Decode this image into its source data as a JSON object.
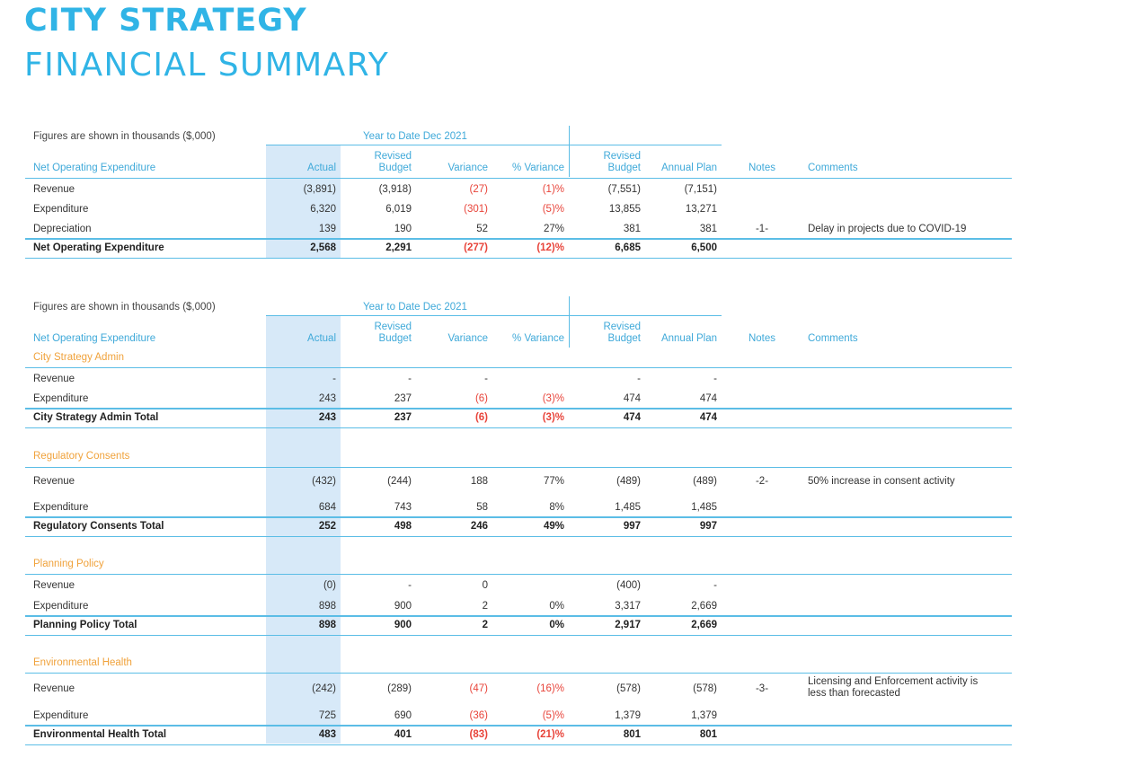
{
  "title": {
    "line1": "CITY STRATEGY",
    "line2": "FINANCIAL SUMMARY"
  },
  "headers": {
    "figures_note": "Figures are shown in thousands ($,000)",
    "ytd": "Year to Date Dec 2021",
    "label": "Net Operating Expenditure",
    "actual": "Actual",
    "revised1": "Revised",
    "budget": "Budget",
    "variance": "Variance",
    "pct_variance": "% Variance",
    "annual_plan": "Annual Plan",
    "notes": "Notes",
    "comments": "Comments"
  },
  "summary": {
    "rows": [
      {
        "label": "Revenue",
        "actual": "(3,891)",
        "revised": "(3,918)",
        "variance": "(27)",
        "pct": "(1)%",
        "rev_budget": "(7,551)",
        "annual": "(7,151)",
        "note": "",
        "comment": ""
      },
      {
        "label": "Expenditure",
        "actual": "6,320",
        "revised": "6,019",
        "variance": "(301)",
        "pct": "(5)%",
        "rev_budget": "13,855",
        "annual": "13,271",
        "note": "",
        "comment": ""
      },
      {
        "label": "Depreciation",
        "actual": "139",
        "revised": "190",
        "variance": "52",
        "pct": "27%",
        "rev_budget": "381",
        "annual": "381",
        "note": "-1-",
        "comment": "Delay in projects due to COVID-19"
      }
    ],
    "total": {
      "label": "Net Operating Expenditure",
      "actual": "2,568",
      "revised": "2,291",
      "variance": "(277)",
      "pct": "(12)%",
      "rev_budget": "6,685",
      "annual": "6,500"
    }
  },
  "sections": [
    {
      "name": "City Strategy Admin",
      "rows": [
        {
          "label": "Revenue",
          "actual": "-",
          "revised": "-",
          "variance": "-",
          "pct": "",
          "rev_budget": "-",
          "annual": "-",
          "note": "",
          "comment": ""
        },
        {
          "label": "Expenditure",
          "actual": "243",
          "revised": "237",
          "variance": "(6)",
          "pct": "(3)%",
          "rev_budget": "474",
          "annual": "474",
          "note": "",
          "comment": ""
        }
      ],
      "total": {
        "label": "City Strategy Admin Total",
        "actual": "243",
        "revised": "237",
        "variance": "(6)",
        "pct": "(3)%",
        "rev_budget": "474",
        "annual": "474"
      }
    },
    {
      "name": "Regulatory Consents",
      "rows": [
        {
          "label": "Revenue",
          "actual": "(432)",
          "revised": "(244)",
          "variance": "188",
          "pct": "77%",
          "rev_budget": "(489)",
          "annual": "(489)",
          "note": "-2-",
          "comment": "50% increase in consent activity"
        },
        {
          "label": "Expenditure",
          "actual": "684",
          "revised": "743",
          "variance": "58",
          "pct": "8%",
          "rev_budget": "1,485",
          "annual": "1,485",
          "note": "",
          "comment": ""
        }
      ],
      "total": {
        "label": "Regulatory Consents Total",
        "actual": "252",
        "revised": "498",
        "variance": "246",
        "pct": "49%",
        "rev_budget": "997",
        "annual": "997"
      }
    },
    {
      "name": "Planning Policy",
      "rows": [
        {
          "label": "Revenue",
          "actual": "(0)",
          "revised": "-",
          "variance": "0",
          "pct": "",
          "rev_budget": "(400)",
          "annual": "-",
          "note": "",
          "comment": ""
        },
        {
          "label": "Expenditure",
          "actual": "898",
          "revised": "900",
          "variance": "2",
          "pct": "0%",
          "rev_budget": "3,317",
          "annual": "2,669",
          "note": "",
          "comment": ""
        }
      ],
      "total": {
        "label": "Planning Policy Total",
        "actual": "898",
        "revised": "900",
        "variance": "2",
        "pct": "0%",
        "rev_budget": "2,917",
        "annual": "2,669"
      }
    },
    {
      "name": "Environmental Health",
      "rows": [
        {
          "label": "Revenue",
          "actual": "(242)",
          "revised": "(289)",
          "variance": "(47)",
          "pct": "(16)%",
          "rev_budget": "(578)",
          "annual": "(578)",
          "note": "-3-",
          "comment": "Licensing and  Enforcement activity is less than forecasted"
        },
        {
          "label": "Expenditure",
          "actual": "725",
          "revised": "690",
          "variance": "(36)",
          "pct": "(5)%",
          "rev_budget": "1,379",
          "annual": "1,379",
          "note": "",
          "comment": ""
        }
      ],
      "total": {
        "label": "Environmental Health Total",
        "actual": "483",
        "revised": "401",
        "variance": "(83)",
        "pct": "(21)%",
        "rev_budget": "801",
        "annual": "801"
      }
    }
  ]
}
